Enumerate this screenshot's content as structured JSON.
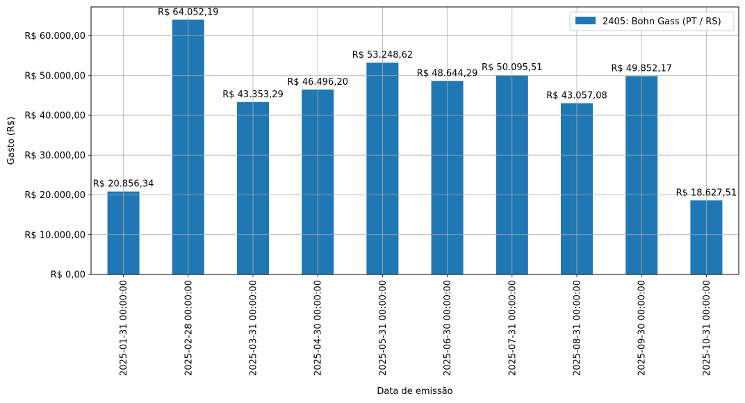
{
  "chart_data": {
    "type": "bar",
    "xlabel": "Data de emissão",
    "ylabel": "Gasto (R$)",
    "ylim": [
      0,
      67255.3
    ],
    "grid": true,
    "legend_position": "top-right",
    "bar_color": "#1f77b4",
    "categories": [
      "2025-01-31 00:00:00",
      "2025-02-28 00:00:00",
      "2025-03-31 00:00:00",
      "2025-04-30 00:00:00",
      "2025-05-31 00:00:00",
      "2025-06-30 00:00:00",
      "2025-07-31 00:00:00",
      "2025-08-31 00:00:00",
      "2025-09-30 00:00:00",
      "2025-10-31 00:00:00"
    ],
    "series": [
      {
        "name": "2405: Bohn Gass (PT / RS)",
        "values": [
          20856.34,
          64052.19,
          43353.29,
          46496.2,
          53248.62,
          48644.29,
          50095.51,
          43057.08,
          49852.17,
          18627.51
        ],
        "labels": [
          "R$ 20.856,34",
          "R$ 64.052,19",
          "R$ 43.353,29",
          "R$ 46.496,20",
          "R$ 53.248,62",
          "R$ 48.644,29",
          "R$ 50.095,51",
          "R$ 43.057,08",
          "R$ 49.852,17",
          "R$ 18.627,51"
        ]
      }
    ],
    "yticks": [
      0,
      10000,
      20000,
      30000,
      40000,
      50000,
      60000
    ],
    "ytick_labels": [
      "R$ 0,00",
      "R$ 10.000,00",
      "R$ 20.000,00",
      "R$ 30.000,00",
      "R$ 40.000,00",
      "R$ 50.000,00",
      "R$ 60.000,00"
    ]
  }
}
